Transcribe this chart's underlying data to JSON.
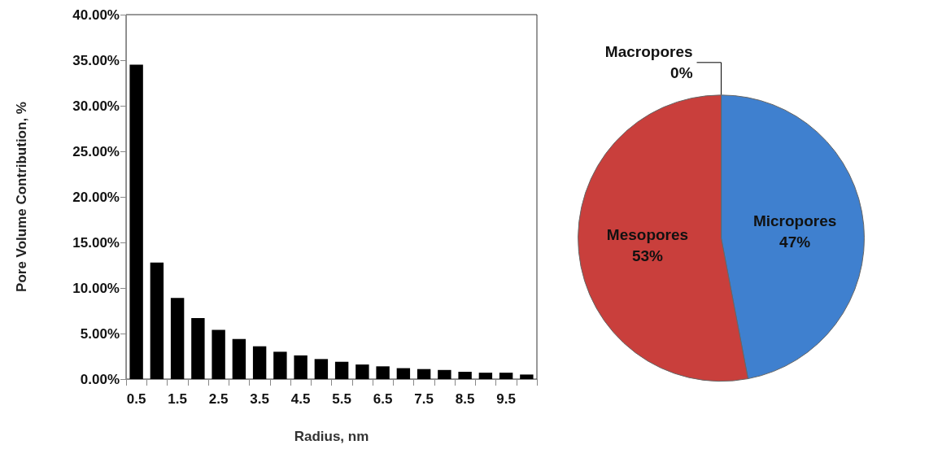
{
  "chart_data": [
    {
      "type": "bar",
      "xlabel": "Radius, nm",
      "ylabel": "Pore Volume Contribution, %",
      "categories": [
        "0.5",
        null,
        "1.5",
        null,
        "2.5",
        null,
        "3.5",
        null,
        "4.5",
        null,
        "5.5",
        null,
        "6.5",
        null,
        "7.5",
        null,
        "8.5",
        null,
        "9.5",
        null
      ],
      "values": [
        34.5,
        12.8,
        8.9,
        6.7,
        5.4,
        4.4,
        3.6,
        3.0,
        2.6,
        2.2,
        1.9,
        1.6,
        1.4,
        1.2,
        1.1,
        1.0,
        0.8,
        0.7,
        0.7,
        0.5
      ],
      "color": "#000000",
      "ylim": [
        0,
        40
      ],
      "yticks": [
        {
          "value": 0,
          "label": "0.00%"
        },
        {
          "value": 5,
          "label": "5.00%"
        },
        {
          "value": 10,
          "label": "10.00%"
        },
        {
          "value": 15,
          "label": "15.00%"
        },
        {
          "value": 20,
          "label": "20.00%"
        },
        {
          "value": 25,
          "label": "25.00%"
        },
        {
          "value": 30,
          "label": "30.00%"
        },
        {
          "value": 35,
          "label": "35.00%"
        },
        {
          "value": 40,
          "label": "40.00%"
        }
      ],
      "grid": false,
      "legend": false
    },
    {
      "type": "pie",
      "categories": [
        "Micropores",
        "Mesopores",
        "Macropores"
      ],
      "values": [
        47,
        53,
        0
      ],
      "colors": [
        "#3f80cf",
        "#c93f3c",
        "#7a9a3a"
      ],
      "value_labels": [
        "47%",
        "53%",
        "0%"
      ],
      "legend": false
    }
  ]
}
